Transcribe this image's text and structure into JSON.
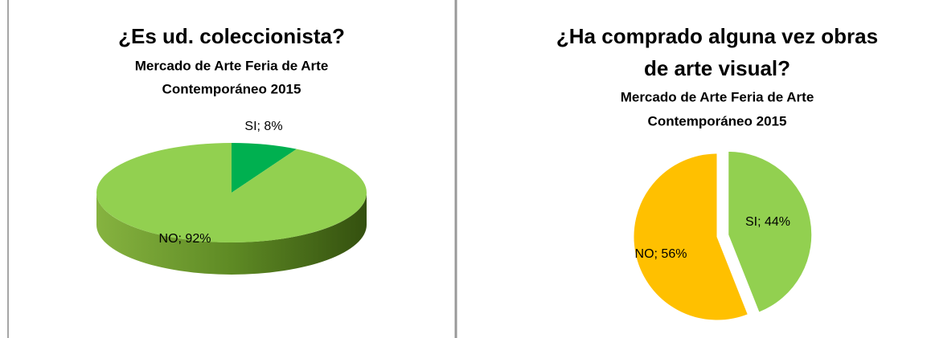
{
  "chart_data": [
    {
      "type": "pie",
      "3d": true,
      "title": [
        "¿Es ud. coleccionista?"
      ],
      "subtitle": [
        "Mercado de Arte Feria de Arte",
        "Contemporáneo 2015"
      ],
      "categories": [
        "SI",
        "NO"
      ],
      "values": [
        8,
        92
      ],
      "value_labels": [
        "SI; 8%",
        "NO; 92%"
      ],
      "colors": [
        "#00b050",
        "#92d050"
      ]
    },
    {
      "type": "pie",
      "3d": false,
      "title": [
        "¿Ha comprado alguna vez obras",
        "de arte visual?"
      ],
      "subtitle": [
        "Mercado de Arte Feria de Arte",
        "Contemporáneo 2015"
      ],
      "categories": [
        "SI",
        "NO"
      ],
      "values": [
        44,
        56
      ],
      "value_labels": [
        "SI; 44%",
        "NO; 56%"
      ],
      "colors": [
        "#92d050",
        "#ffc000"
      ],
      "explode": [
        true,
        false
      ]
    }
  ]
}
